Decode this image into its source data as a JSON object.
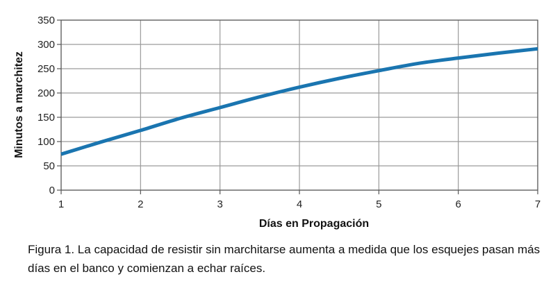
{
  "chart_data": {
    "type": "line",
    "title": "",
    "xlabel": "Días en Propagación",
    "ylabel": "Minutos a marchitez",
    "xlim": [
      1,
      7
    ],
    "ylim": [
      0,
      350
    ],
    "x_ticks": [
      1,
      2,
      3,
      4,
      5,
      6,
      7
    ],
    "y_ticks": [
      0,
      50,
      100,
      150,
      200,
      250,
      300,
      350
    ],
    "grid": true,
    "legend": "none",
    "series": [
      {
        "color": "#1a75b0",
        "x": [
          1,
          1.5,
          2,
          2.5,
          3,
          3.5,
          4,
          4.5,
          5,
          5.5,
          6,
          6.5,
          7
        ],
        "y": [
          74,
          99,
          123,
          148,
          170,
          192,
          212,
          230,
          246,
          261,
          272,
          282,
          291
        ]
      }
    ]
  },
  "caption": "Figura 1. La capacidad de resistir sin marchitarse aumenta a medida que los esquejes pasan más días en el banco y comienzan a echar raíces."
}
